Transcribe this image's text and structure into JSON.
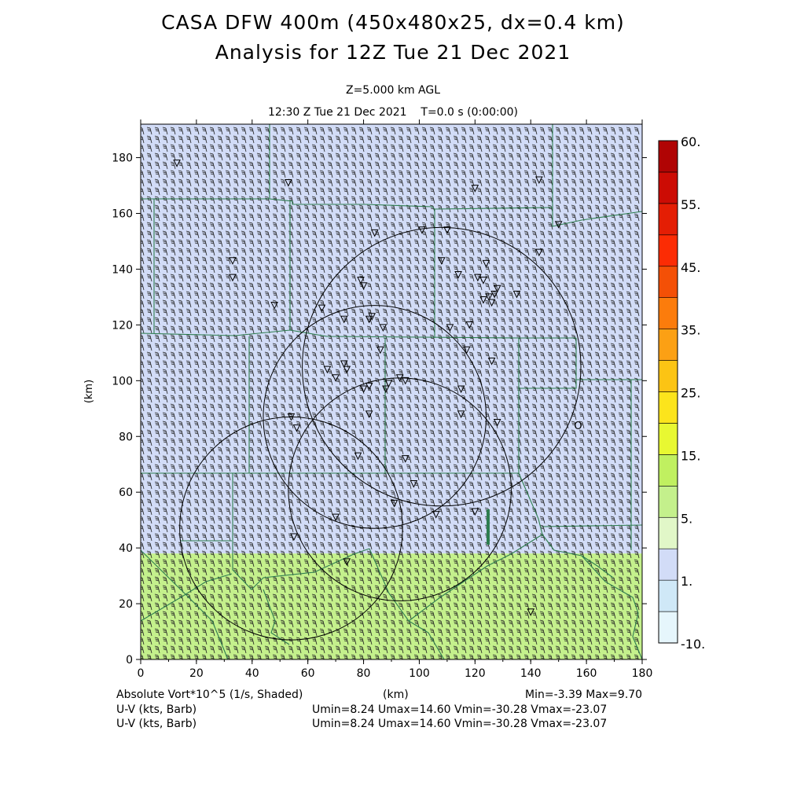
{
  "header": {
    "title_line1": "CASA DFW 400m (450x480x25, dx=0.4 km)",
    "title_line2": "Analysis for 12Z Tue 21 Dec 2021",
    "level": "Z=5.000 km AGL",
    "time": "12:30 Z Tue 21 Dec 2021    T=0.0 s (0:00:00)"
  },
  "footer": {
    "field_label": "Absolute Vort*10^5 (1/s, Shaded)",
    "xunit": "(km)",
    "minmax": "Min=-3.39 Max=9.70",
    "wind_label_1": "U-V (kts, Barb)",
    "wind_stats_1": "Umin=8.24 Umax=14.60 Vmin=-30.28 Vmax=-23.07",
    "wind_label_2": "U-V (kts, Barb)",
    "wind_stats_2": "Umin=8.24 Umax=14.60 Vmin=-30.28 Vmax=-23.07"
  },
  "chart_data": {
    "type": "heatmap",
    "field": "Absolute Vorticity x 10^5 (1/s)",
    "xlabel": "",
    "ylabel": "(km)",
    "xlim": [
      0,
      180
    ],
    "ylim": [
      0,
      192
    ],
    "x_ticks": [
      "0",
      "20",
      "40",
      "60",
      "80",
      "100",
      "120",
      "140",
      "160",
      "180"
    ],
    "y_ticks": [
      "0",
      "20",
      "40",
      "60",
      "80",
      "100",
      "120",
      "140",
      "160",
      "180"
    ],
    "field_min": -3.39,
    "field_max": 9.7,
    "shaded_regions": [
      {
        "y_from": 38,
        "y_to": 192,
        "color": "#d2dcf7"
      },
      {
        "y_from": 0,
        "y_to": 38,
        "color": "#c4f08c"
      }
    ],
    "colorbar": {
      "levels": [
        {
          "color": "#e6f6fc"
        },
        {
          "color": "#cfe8f7"
        },
        {
          "color": "#d2dcf7"
        },
        {
          "color": "#e1f7c8"
        },
        {
          "color": "#c4f08c"
        },
        {
          "color": "#c0f060"
        },
        {
          "color": "#e8f832"
        },
        {
          "color": "#fce41c"
        },
        {
          "color": "#fcc414"
        },
        {
          "color": "#fca014"
        },
        {
          "color": "#fc7c0c"
        },
        {
          "color": "#f45006"
        },
        {
          "color": "#fc2c04"
        },
        {
          "color": "#e41e04"
        },
        {
          "color": "#cc0c04"
        },
        {
          "color": "#b00404"
        }
      ],
      "labels": [
        {
          "text": "-10.",
          "level": 0
        },
        {
          "text": "1.",
          "level": 2
        },
        {
          "text": "5.",
          "level": 4
        },
        {
          "text": "15.",
          "level": 6
        },
        {
          "text": "25.",
          "level": 8
        },
        {
          "text": "35.",
          "level": 10
        },
        {
          "text": "45.",
          "level": 12
        },
        {
          "text": "55.",
          "level": 14
        },
        {
          "text": "60.",
          "level": 16
        }
      ]
    },
    "wind": {
      "u_min": 8.24,
      "u_max": 14.6,
      "v_min": -30.28,
      "v_max": -23.07,
      "units": "kts"
    },
    "radar_range_rings": [
      {
        "cx": 108,
        "cy": 105,
        "r": 50
      },
      {
        "cx": 84,
        "cy": 87,
        "r": 40
      },
      {
        "cx": 93,
        "cy": 61,
        "r": 40
      },
      {
        "cx": 54,
        "cy": 47,
        "r": 40
      }
    ],
    "station_markers": [
      [
        13,
        178
      ],
      [
        53,
        171
      ],
      [
        120,
        169
      ],
      [
        143,
        172
      ],
      [
        101,
        154
      ],
      [
        110,
        154
      ],
      [
        84,
        153
      ],
      [
        150,
        156
      ],
      [
        108,
        143
      ],
      [
        124,
        142
      ],
      [
        143,
        146
      ],
      [
        33,
        143
      ],
      [
        33,
        137
      ],
      [
        114,
        138
      ],
      [
        121,
        137
      ],
      [
        123,
        136
      ],
      [
        79,
        136
      ],
      [
        80,
        134
      ],
      [
        123,
        129
      ],
      [
        125,
        130
      ],
      [
        126,
        128
      ],
      [
        127,
        131
      ],
      [
        128,
        133
      ],
      [
        135,
        131
      ],
      [
        48,
        127
      ],
      [
        65,
        126
      ],
      [
        73,
        122
      ],
      [
        82,
        122
      ],
      [
        83,
        123
      ],
      [
        87,
        119
      ],
      [
        111,
        119
      ],
      [
        118,
        120
      ],
      [
        86,
        111
      ],
      [
        117,
        111
      ],
      [
        126,
        107
      ],
      [
        73,
        106
      ],
      [
        74,
        104
      ],
      [
        67,
        104
      ],
      [
        70,
        101
      ],
      [
        80,
        97
      ],
      [
        82,
        98
      ],
      [
        88,
        97
      ],
      [
        89,
        99
      ],
      [
        93,
        101
      ],
      [
        95,
        100
      ],
      [
        115,
        97
      ],
      [
        82,
        88
      ],
      [
        115,
        88
      ],
      [
        128,
        85
      ],
      [
        54,
        87
      ],
      [
        56,
        83
      ],
      [
        78,
        73
      ],
      [
        95,
        72
      ],
      [
        98,
        63
      ],
      [
        91,
        56
      ],
      [
        70,
        51
      ],
      [
        106,
        52
      ],
      [
        120,
        53
      ],
      [
        55,
        44
      ],
      [
        74,
        35
      ],
      [
        140,
        17
      ]
    ],
    "annotation": {
      "text": "O",
      "x": 157,
      "y": 84
    }
  }
}
